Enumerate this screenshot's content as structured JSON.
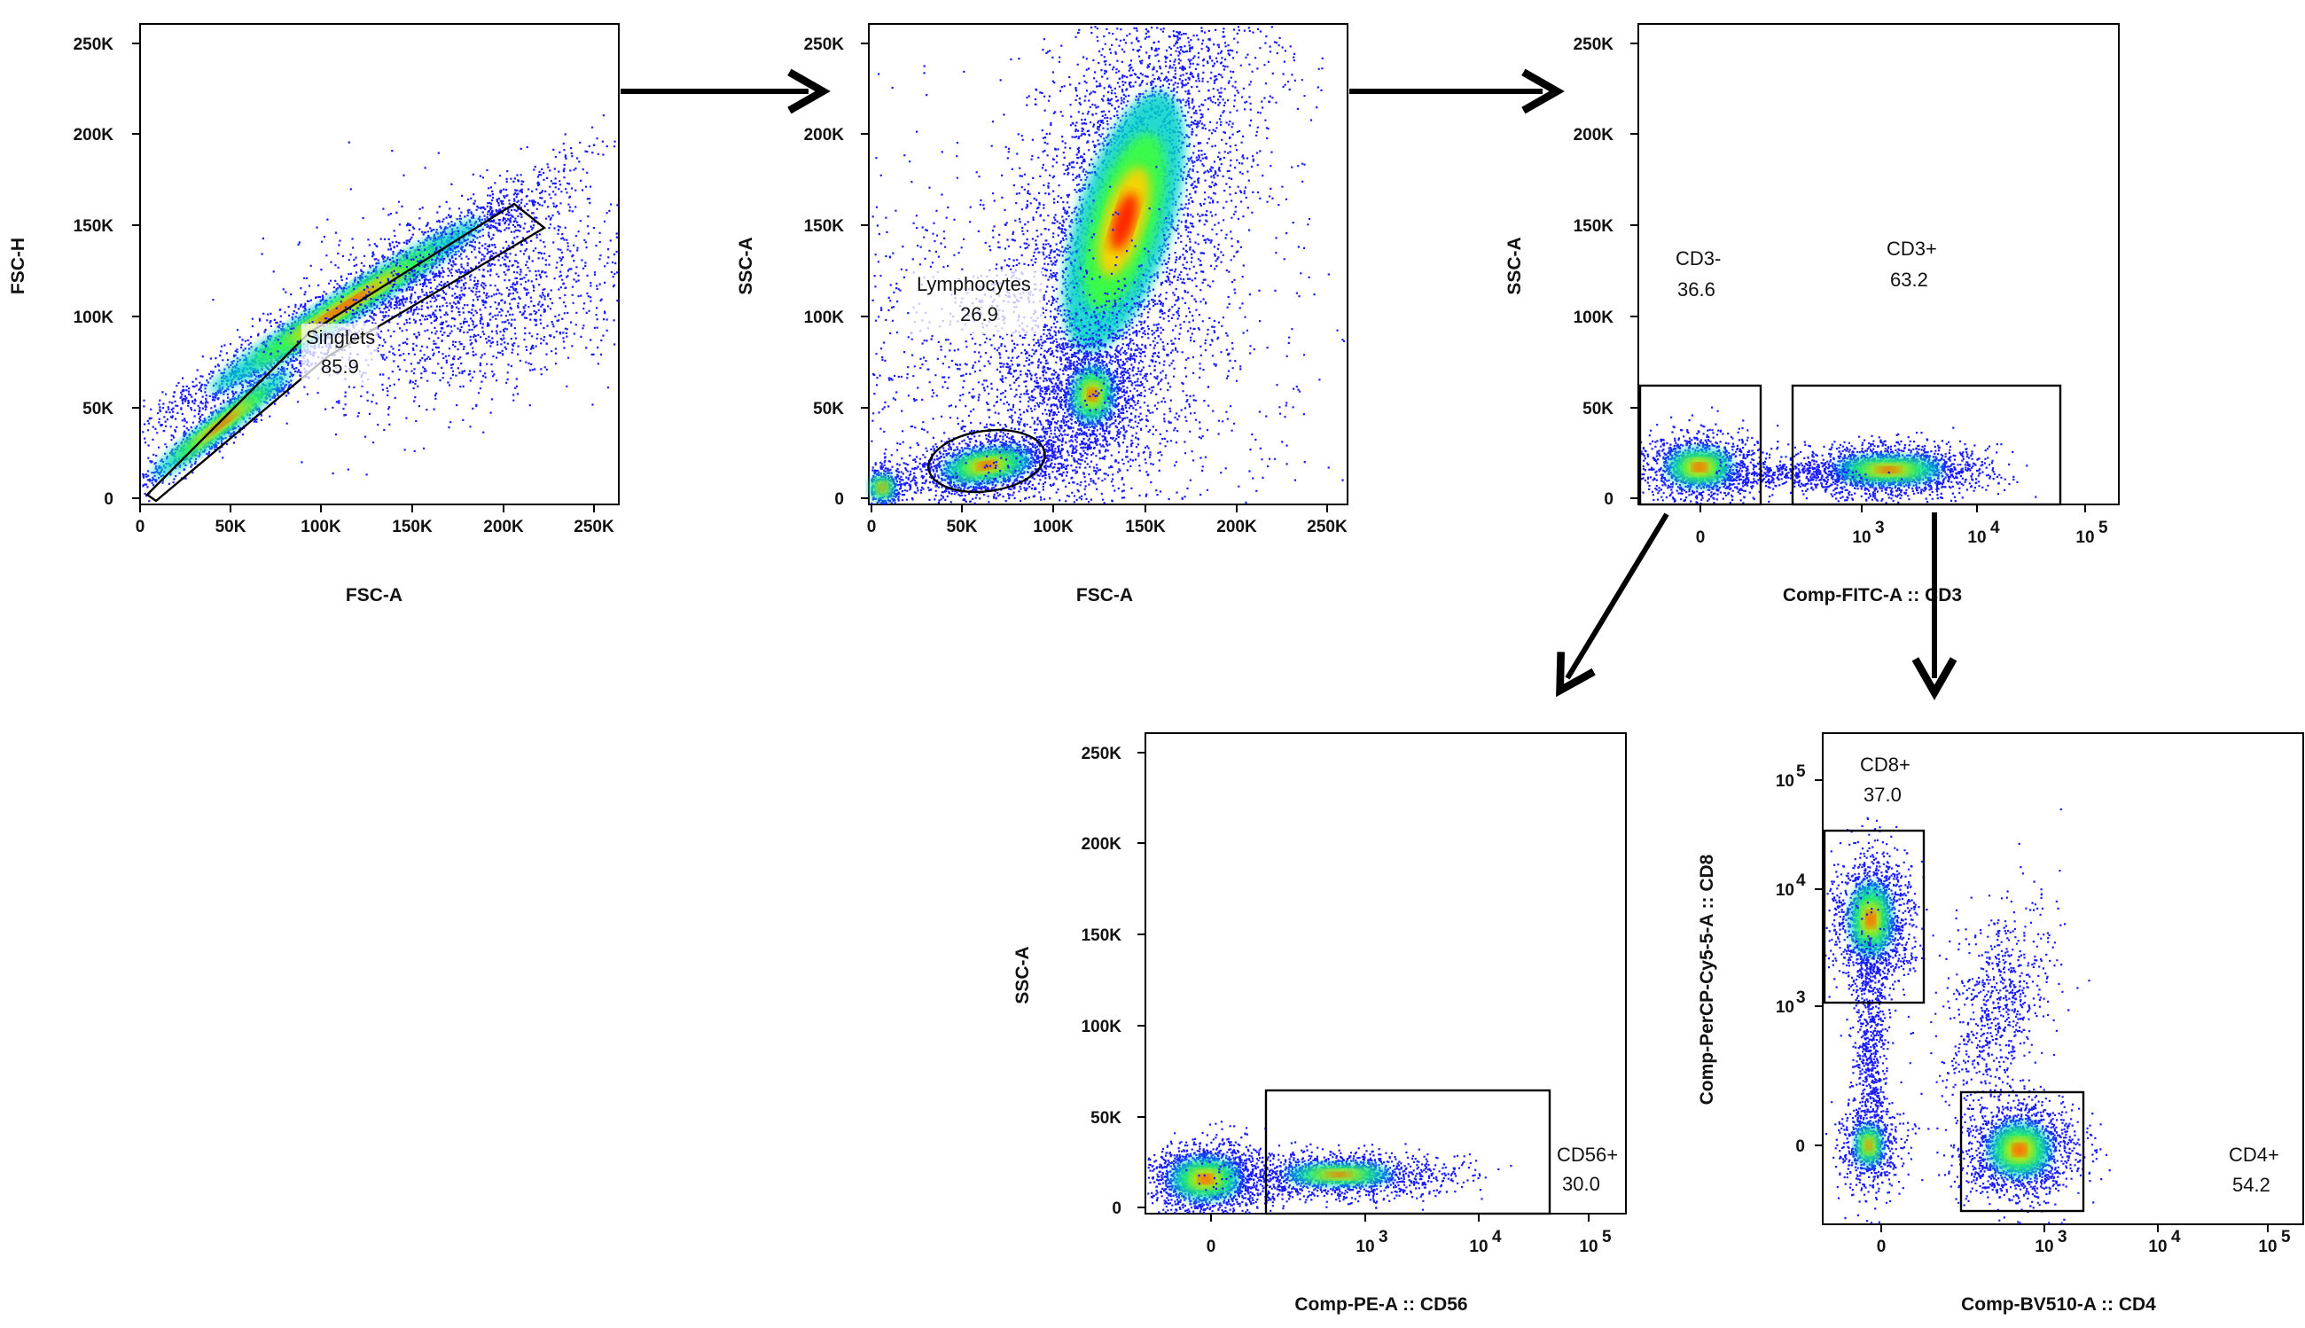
{
  "chart_data": [
    {
      "type": "scatter",
      "id": "p1",
      "xlabel": "FSC-A",
      "ylabel": "FSC-H",
      "x_ticks": [
        "0",
        "50K",
        "100K",
        "150K",
        "200K",
        "250K"
      ],
      "y_ticks": [
        "0",
        "50K",
        "100K",
        "150K",
        "200K",
        "250K"
      ],
      "xlim": [
        0,
        262144
      ],
      "ylim": [
        0,
        262144
      ],
      "gates": [
        {
          "name": "Singlets",
          "value": "85.9"
        }
      ]
    },
    {
      "type": "scatter",
      "id": "p2",
      "xlabel": "FSC-A",
      "ylabel": "SSC-A",
      "x_ticks": [
        "0",
        "50K",
        "100K",
        "150K",
        "200K",
        "250K"
      ],
      "y_ticks": [
        "0",
        "50K",
        "100K",
        "150K",
        "200K",
        "250K"
      ],
      "xlim": [
        0,
        262144
      ],
      "ylim": [
        0,
        262144
      ],
      "gates": [
        {
          "name": "Lymphocytes",
          "value": "26.9"
        }
      ]
    },
    {
      "type": "scatter",
      "id": "p3",
      "xlabel": "Comp-FITC-A :: CD3",
      "ylabel": "SSC-A",
      "x_ticks": [
        "0",
        "10",
        "10",
        "10"
      ],
      "x_tick_exps": [
        "",
        "3",
        "4",
        "5"
      ],
      "y_ticks": [
        "0",
        "50K",
        "100K",
        "150K",
        "200K",
        "250K"
      ],
      "ylim": [
        0,
        262144
      ],
      "gates": [
        {
          "name": "CD3-",
          "value": "36.6"
        },
        {
          "name": "CD3+",
          "value": "63.2"
        }
      ]
    },
    {
      "type": "scatter",
      "id": "p4",
      "xlabel": "Comp-PE-A :: CD56",
      "ylabel": "SSC-A",
      "x_ticks": [
        "0",
        "10",
        "10",
        "10"
      ],
      "x_tick_exps": [
        "",
        "3",
        "4",
        "5"
      ],
      "y_ticks": [
        "0",
        "50K",
        "100K",
        "150K",
        "200K",
        "250K"
      ],
      "ylim": [
        0,
        262144
      ],
      "gates": [
        {
          "name": "CD56+",
          "value": "30.0"
        }
      ]
    },
    {
      "type": "scatter",
      "id": "p5",
      "xlabel": "Comp-BV510-A :: CD4",
      "ylabel": "Comp-PerCP-Cy5-5-A :: CD8",
      "x_ticks": [
        "0",
        "10",
        "10",
        "10"
      ],
      "x_tick_exps": [
        "",
        "3",
        "4",
        "5"
      ],
      "y_ticks": [
        "0",
        "10",
        "10",
        "10"
      ],
      "y_tick_exps": [
        "",
        "3",
        "4",
        "5"
      ],
      "gates": [
        {
          "name": "CD8+",
          "value": "37.0"
        },
        {
          "name": "CD4+",
          "value": "54.2"
        }
      ]
    }
  ],
  "colors": {
    "density_low": "#1a1aff",
    "density_mid": "#00d2c8",
    "density_high1": "#3cff3c",
    "density_high2": "#ffd200",
    "density_peak": "#ff2000",
    "gate_line": "#000000",
    "arrow": "#000000"
  }
}
